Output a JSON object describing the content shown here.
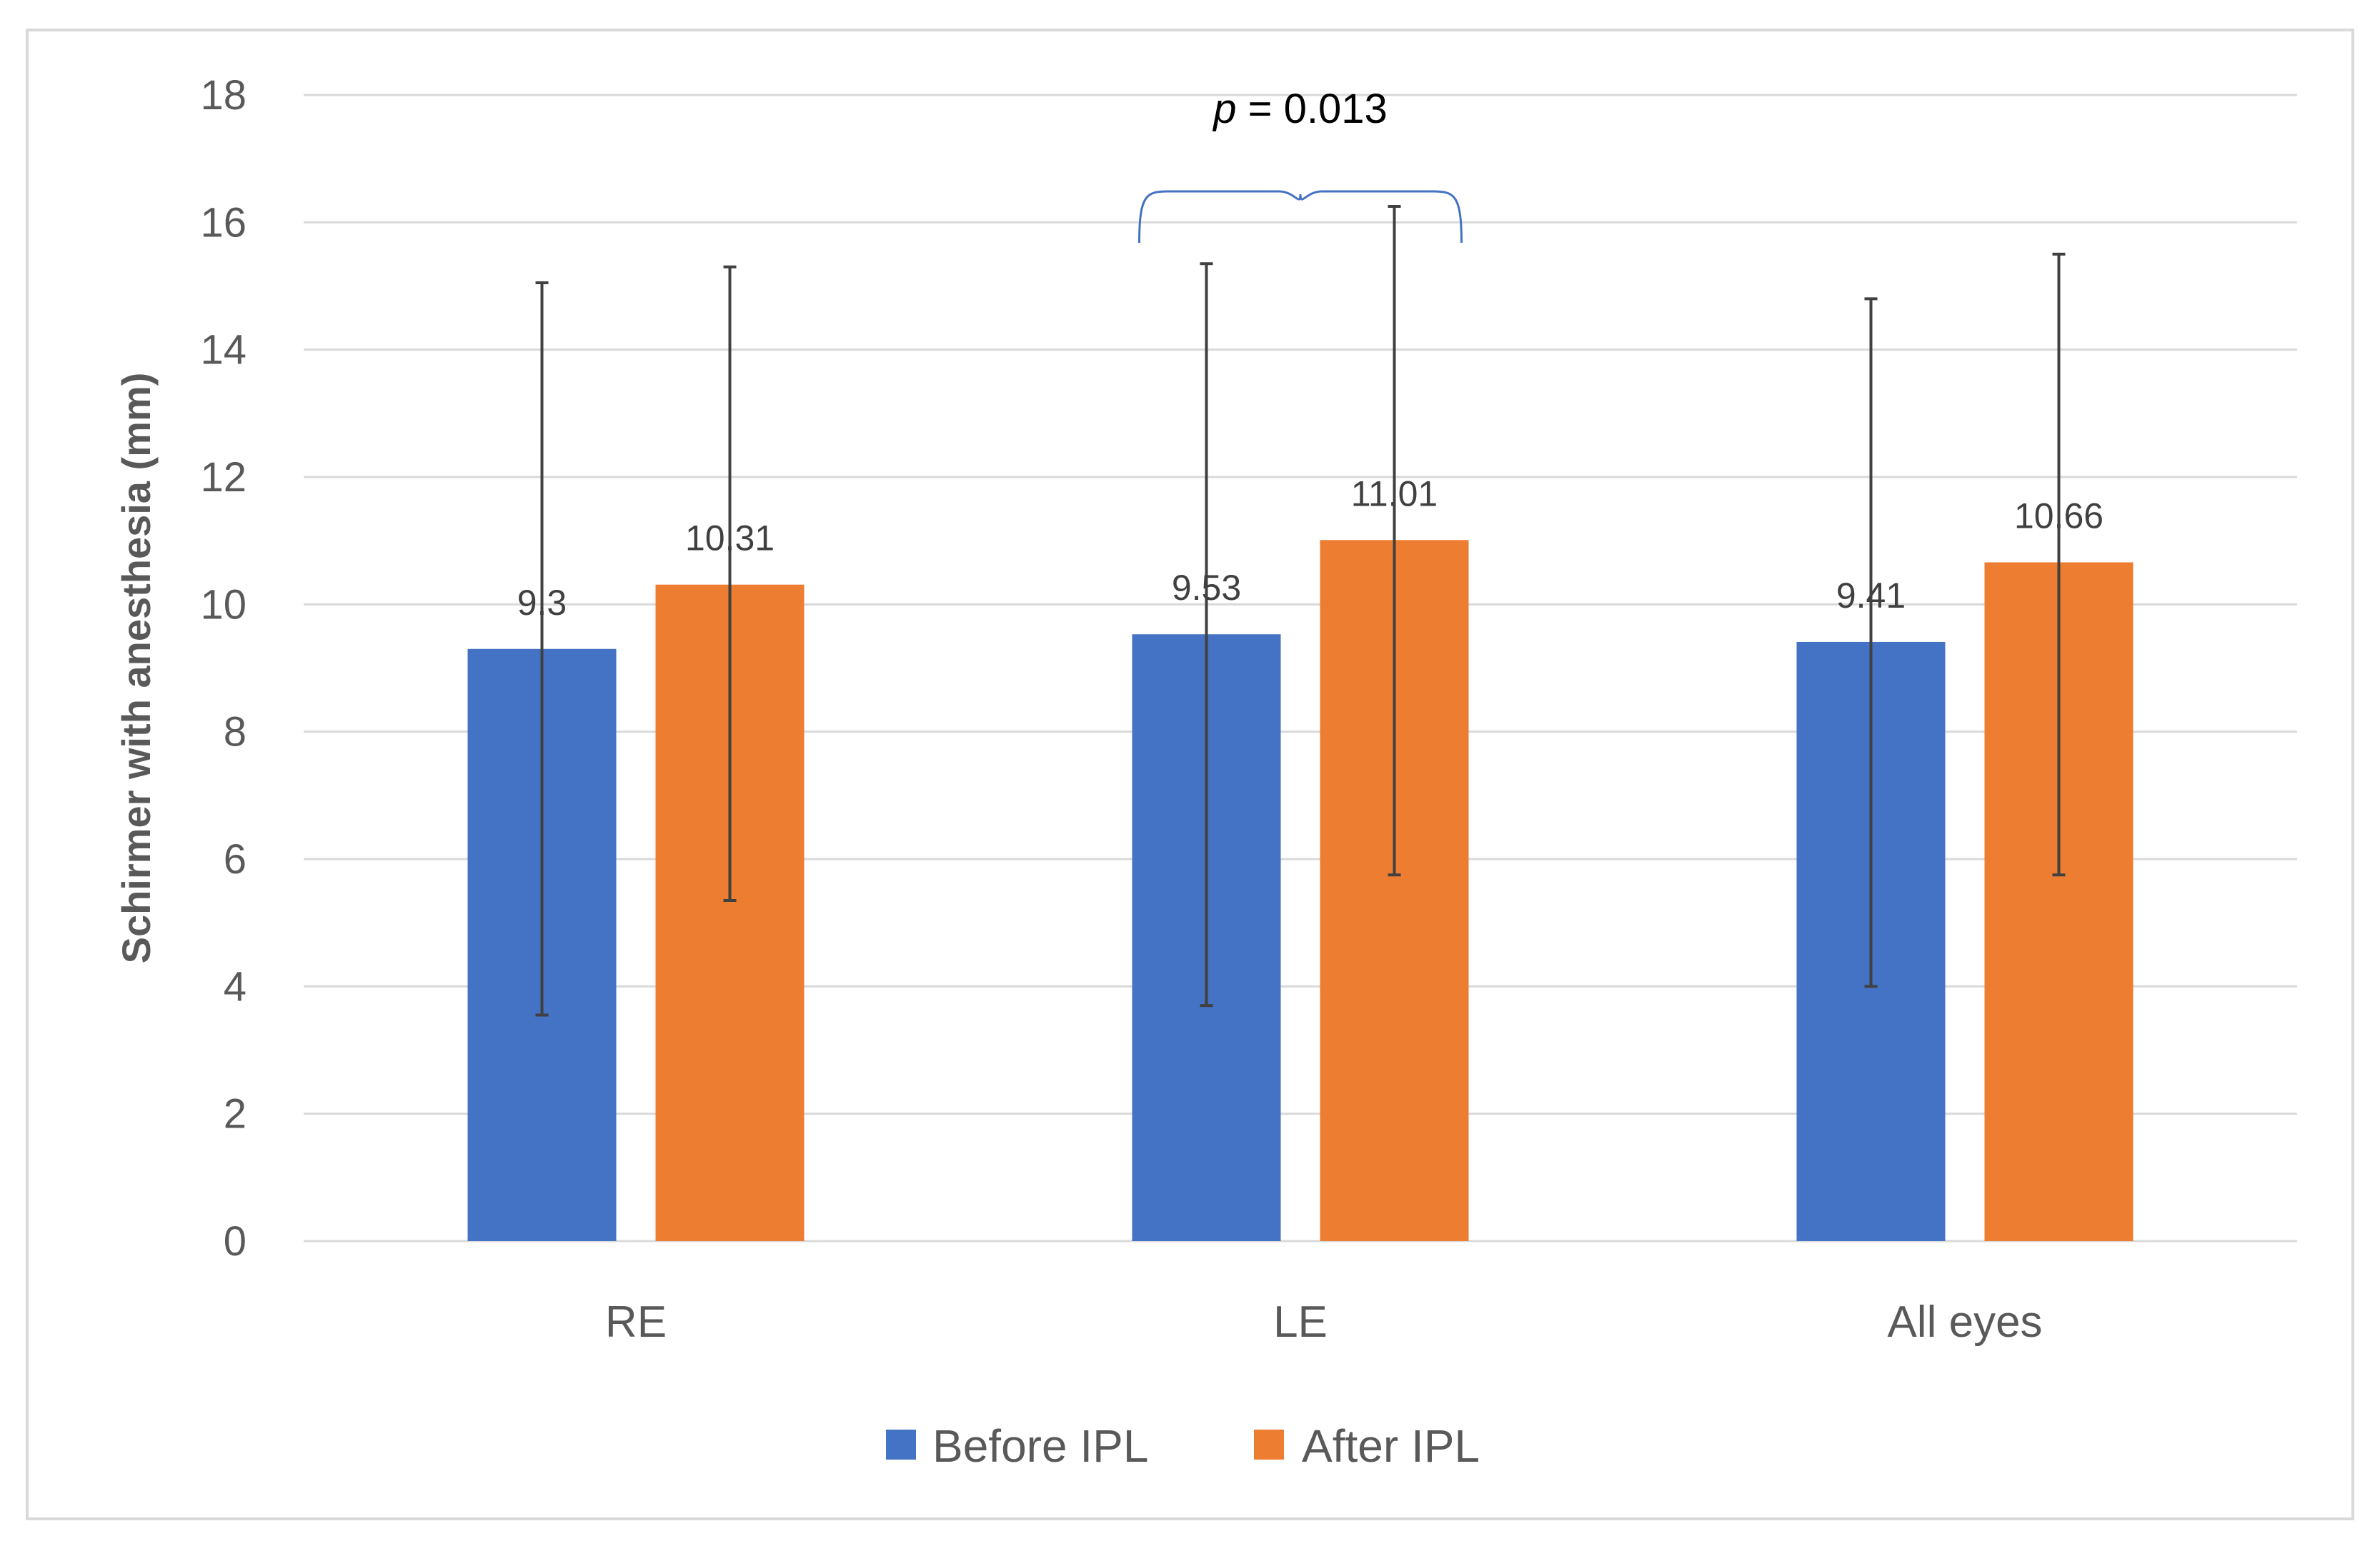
{
  "chart_data": {
    "type": "bar",
    "title": "",
    "xlabel": "",
    "ylabel": "Schirmer with anesthesia (mm)",
    "ylim": [
      0,
      18
    ],
    "yticks": [
      0,
      2,
      4,
      6,
      8,
      10,
      12,
      14,
      16,
      18
    ],
    "grid": true,
    "legend_position": "bottom",
    "categories": [
      "RE",
      "LE",
      "All eyes"
    ],
    "series": [
      {
        "name": "Before IPL",
        "color": "#4472C4",
        "values": [
          9.3,
          9.53,
          9.41
        ],
        "labels": [
          "9.3",
          "9.53",
          "9.41"
        ],
        "error_low": [
          3.55,
          3.7,
          4.0
        ],
        "error_high": [
          15.05,
          15.35,
          14.8
        ]
      },
      {
        "name": "After IPL",
        "color": "#ED7D31",
        "values": [
          10.31,
          11.01,
          10.66
        ],
        "labels": [
          "10.31",
          "11.01",
          "10.66"
        ],
        "error_low": [
          5.35,
          5.75,
          5.75
        ],
        "error_high": [
          15.3,
          16.25,
          15.5
        ]
      }
    ],
    "annotations": [
      {
        "category": "LE",
        "p_symbol": "p",
        "text": " = 0.013",
        "bracket_color": "#4472C4"
      }
    ]
  }
}
